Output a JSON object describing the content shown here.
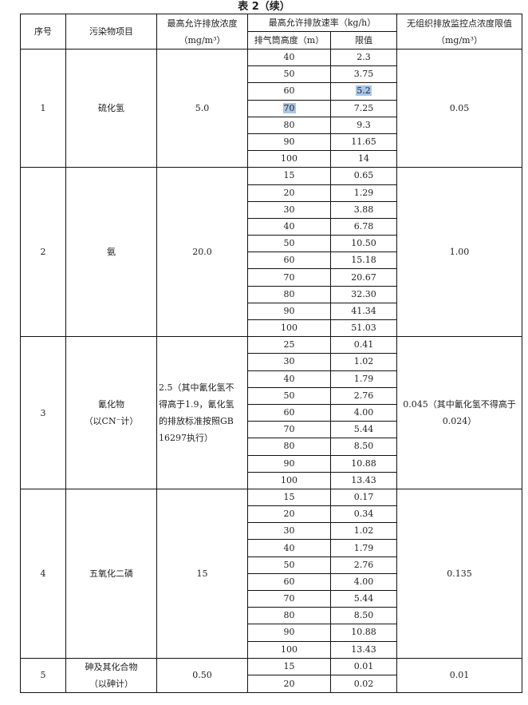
{
  "title": "表 2（续）",
  "highlight_color": "#a9c7e6",
  "header": {
    "no": "序号",
    "pollutant": "污染物项目",
    "max_conc": "最高允许排放浓度",
    "max_conc_unit": "（mg/m³）",
    "max_rate": "最高允许排放速率（kg/h）",
    "stack_height": "排气筒高度（m）",
    "limit": "限值",
    "fugitive": "无组织排放监控点浓度限值",
    "fugitive_unit": "（mg/m³）"
  },
  "groups": [
    {
      "no": "1",
      "pollutant": [
        "硫化氢"
      ],
      "conc": [
        "5.0"
      ],
      "fugitive": [
        "0.05"
      ],
      "rows": [
        [
          "40",
          "2.3"
        ],
        [
          "50",
          "3.75"
        ],
        [
          "60",
          "5.2"
        ],
        [
          "70",
          "7.25"
        ],
        [
          "80",
          "9.3"
        ],
        [
          "90",
          "11.65"
        ],
        [
          "100",
          "14"
        ]
      ],
      "highlighted": [
        [
          2,
          1
        ],
        [
          3,
          0
        ]
      ]
    },
    {
      "no": "2",
      "pollutant": [
        "氨"
      ],
      "conc": [
        "20.0"
      ],
      "fugitive": [
        "1.00"
      ],
      "rows": [
        [
          "15",
          "0.65"
        ],
        [
          "20",
          "1.29"
        ],
        [
          "30",
          "3.88"
        ],
        [
          "40",
          "6.78"
        ],
        [
          "50",
          "10.50"
        ],
        [
          "60",
          "15.18"
        ],
        [
          "70",
          "20.67"
        ],
        [
          "80",
          "32.30"
        ],
        [
          "90",
          "41.34"
        ],
        [
          "100",
          "51.03"
        ]
      ]
    },
    {
      "no": "3",
      "pollutant": [
        "氰化物",
        "（以CN⁻计）"
      ],
      "conc": [
        "2.5（其中氰化氢不",
        "得高于1.9，氰化氢",
        "的排放标准按照GB",
        "16297执行）"
      ],
      "fugitive": [
        "0.045（其中氰化氢不得高于",
        "0.024）"
      ],
      "rows": [
        [
          "25",
          "0.41"
        ],
        [
          "30",
          "1.02"
        ],
        [
          "40",
          "1.79"
        ],
        [
          "50",
          "2.76"
        ],
        [
          "60",
          "4.00"
        ],
        [
          "70",
          "5.44"
        ],
        [
          "80",
          "8.50"
        ],
        [
          "90",
          "10.88"
        ],
        [
          "100",
          "13.43"
        ]
      ]
    },
    {
      "no": "4",
      "pollutant": [
        "五氧化二磷"
      ],
      "conc": [
        "15"
      ],
      "fugitive": [
        "0.135"
      ],
      "rows": [
        [
          "15",
          "0.17"
        ],
        [
          "20",
          "0.34"
        ],
        [
          "30",
          "1.02"
        ],
        [
          "40",
          "1.79"
        ],
        [
          "50",
          "2.76"
        ],
        [
          "60",
          "4.00"
        ],
        [
          "70",
          "5.44"
        ],
        [
          "80",
          "8.50"
        ],
        [
          "90",
          "10.88"
        ],
        [
          "100",
          "13.43"
        ]
      ]
    },
    {
      "no": "5",
      "pollutant": [
        "砷及其化合物",
        "（以砷计）"
      ],
      "conc": [
        "0.50"
      ],
      "fugitive": [
        "0.01"
      ],
      "rows": [
        [
          "15",
          "0.01"
        ],
        [
          "20",
          "0.02"
        ]
      ]
    }
  ]
}
